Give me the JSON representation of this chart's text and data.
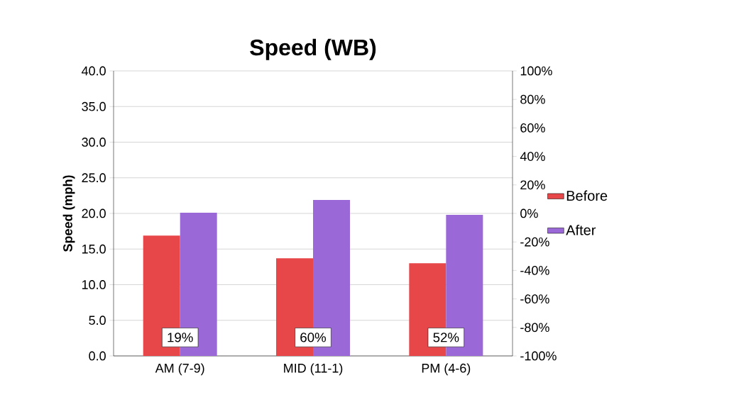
{
  "chart_data": {
    "type": "bar",
    "title": "Speed (WB)",
    "ylabel": "Speed (mph)",
    "categories": [
      "AM (7-9)",
      "MID (11-1)",
      "PM (4-6)"
    ],
    "series": [
      {
        "name": "Before",
        "color": "#e8474a",
        "values": [
          16.9,
          13.7,
          13.0
        ]
      },
      {
        "name": "After",
        "color": "#9b68d8",
        "values": [
          20.1,
          21.9,
          19.8
        ]
      }
    ],
    "ylim": [
      0,
      40
    ],
    "yticks": [
      {
        "value": 0,
        "label": "0.0"
      },
      {
        "value": 5,
        "label": "5.0"
      },
      {
        "value": 10,
        "label": "10.0"
      },
      {
        "value": 15,
        "label": "15.0"
      },
      {
        "value": 20,
        "label": "20.0"
      },
      {
        "value": 25,
        "label": "25.0"
      },
      {
        "value": 30,
        "label": "30.0"
      },
      {
        "value": 35,
        "label": "35.0"
      },
      {
        "value": 40,
        "label": "40.0"
      }
    ],
    "y2lim": [
      -100,
      100
    ],
    "y2ticks": [
      {
        "value": -100,
        "label": "-100%"
      },
      {
        "value": -80,
        "label": "-80%"
      },
      {
        "value": -60,
        "label": "-60%"
      },
      {
        "value": -40,
        "label": "-40%"
      },
      {
        "value": -20,
        "label": "-20%"
      },
      {
        "value": 0,
        "label": "0%"
      },
      {
        "value": 20,
        "label": "20%"
      },
      {
        "value": 40,
        "label": "40%"
      },
      {
        "value": 60,
        "label": "60%"
      },
      {
        "value": 80,
        "label": "80%"
      },
      {
        "value": 100,
        "label": "100%"
      }
    ],
    "grid": "y",
    "legend": "right",
    "annotations": [
      "19%",
      "60%",
      "52%"
    ]
  }
}
